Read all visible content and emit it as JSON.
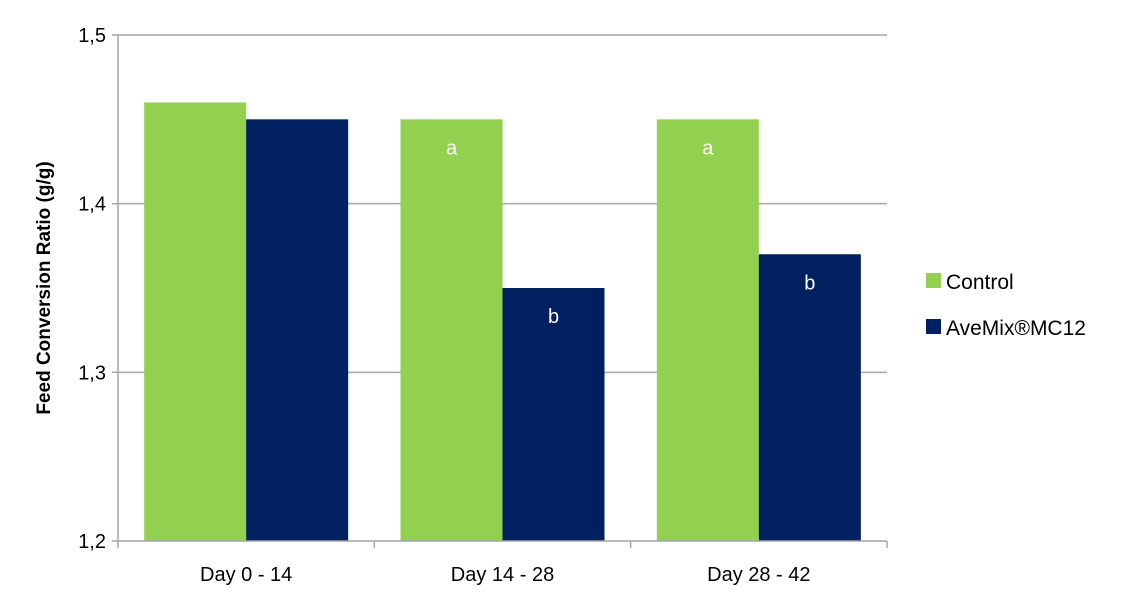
{
  "chart_data": {
    "type": "bar",
    "categories": [
      "Day 0 - 14",
      "Day 14 - 28",
      "Day 28 - 42"
    ],
    "series": [
      {
        "name": "Control",
        "color": "#92d050",
        "values": [
          1.46,
          1.45,
          1.45
        ],
        "labels": [
          "",
          "a",
          "a"
        ]
      },
      {
        "name": "AveMix®MC12",
        "color": "#002060",
        "values": [
          1.45,
          1.35,
          1.37
        ],
        "labels": [
          "",
          "b",
          "b"
        ]
      }
    ],
    "ylabel": "Feed Conversion Ratio (g/g)",
    "ylim": [
      1.2,
      1.5
    ],
    "yticks": [
      1.2,
      1.3,
      1.4,
      1.5
    ],
    "ytick_labels": [
      "1,2",
      "1,3",
      "1,4",
      "1,5"
    ],
    "grid": true,
    "legend_position": "right",
    "gridline_color": "#a6a6a6"
  }
}
